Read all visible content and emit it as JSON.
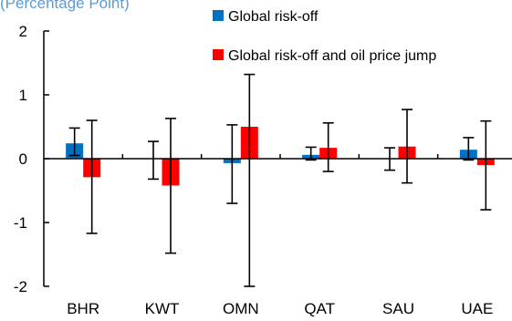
{
  "chart_data": {
    "type": "bar",
    "subtitle": "(Percentage Point)",
    "categories": [
      "BHR",
      "KWT",
      "OMN",
      "QAT",
      "SAU",
      "UAE"
    ],
    "ylim": [
      -2,
      2
    ],
    "yticks": [
      {
        "value": 2,
        "label": "2"
      },
      {
        "value": 1,
        "label": "1"
      },
      {
        "value": 0,
        "label": "0"
      },
      {
        "value": -1,
        "label": "-1"
      },
      {
        "value": -2,
        "label": "-2"
      }
    ],
    "grid": false,
    "legend_position": "top-right",
    "series": [
      {
        "name": "Global risk-off",
        "color": "#0070c0",
        "values": [
          0.24,
          0.0,
          -0.07,
          0.06,
          0.0,
          0.14
        ],
        "error_low": [
          0.05,
          -0.32,
          -0.7,
          -0.02,
          -0.18,
          -0.02
        ],
        "error_high": [
          0.48,
          0.27,
          0.53,
          0.18,
          0.17,
          0.33
        ]
      },
      {
        "name": "Global risk-off and oil price jump",
        "color": "#ff0000",
        "values": [
          -0.29,
          -0.42,
          0.5,
          0.17,
          0.19,
          -0.1
        ],
        "error_low": [
          -1.17,
          -1.48,
          -2.0,
          -0.2,
          -0.38,
          -0.8
        ],
        "error_high": [
          0.6,
          0.63,
          1.32,
          0.56,
          0.77,
          0.59
        ]
      }
    ]
  }
}
